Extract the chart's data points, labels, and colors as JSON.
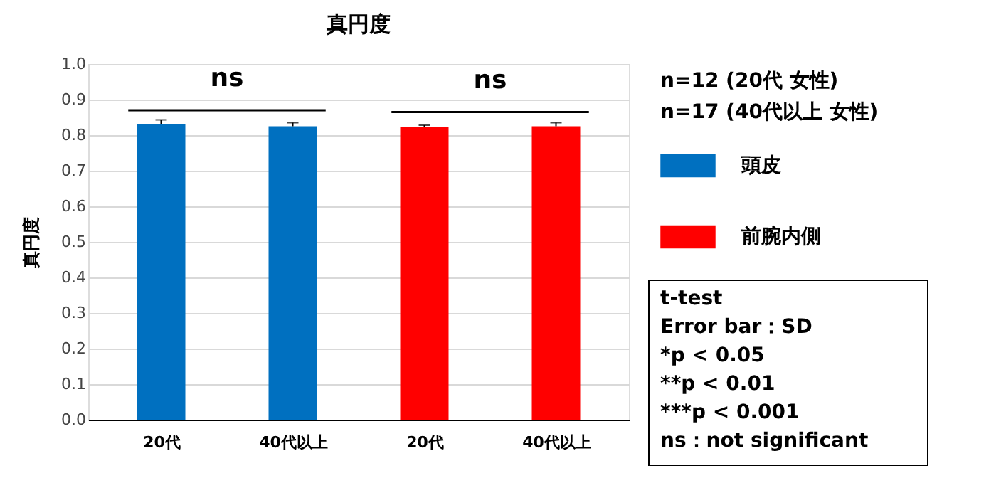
{
  "chart_data": {
    "type": "bar",
    "title": "真円度",
    "ylabel": "真円度",
    "categories": [
      "20代",
      "40代以上",
      "20代",
      "40代以上"
    ],
    "series": [
      {
        "name": "頭皮",
        "color": "#0070c0",
        "values": [
          0.83,
          0.825,
          null,
          null
        ],
        "errors": [
          [
            0.83,
            0.843
          ],
          [
            0.825,
            0.835
          ],
          null,
          null
        ]
      },
      {
        "name": "前腕内側",
        "color": "#ff0000",
        "values": [
          null,
          null,
          0.822,
          0.825
        ],
        "errors": [
          null,
          null,
          [
            0.822,
            0.828
          ],
          [
            0.825,
            0.835
          ]
        ]
      }
    ],
    "ylim": [
      0,
      1
    ],
    "yticks": [
      {
        "value": 0,
        "label": "0.0"
      },
      0.1,
      0.2,
      0.3,
      0.4,
      0.5,
      0.6,
      0.7,
      0.8,
      0.9,
      {
        "value": 1,
        "label": "1.0"
      }
    ],
    "grid": "y",
    "legend": "right",
    "annotations": [
      "ns",
      "ns",
      "n=12 (20代 女性)",
      "n=17 (40代以上 女性)",
      "t-test\nError bar：SD\n*p < 0.05\n**p < 0.01\n***p < 0.001\nns：not significant"
    ]
  }
}
